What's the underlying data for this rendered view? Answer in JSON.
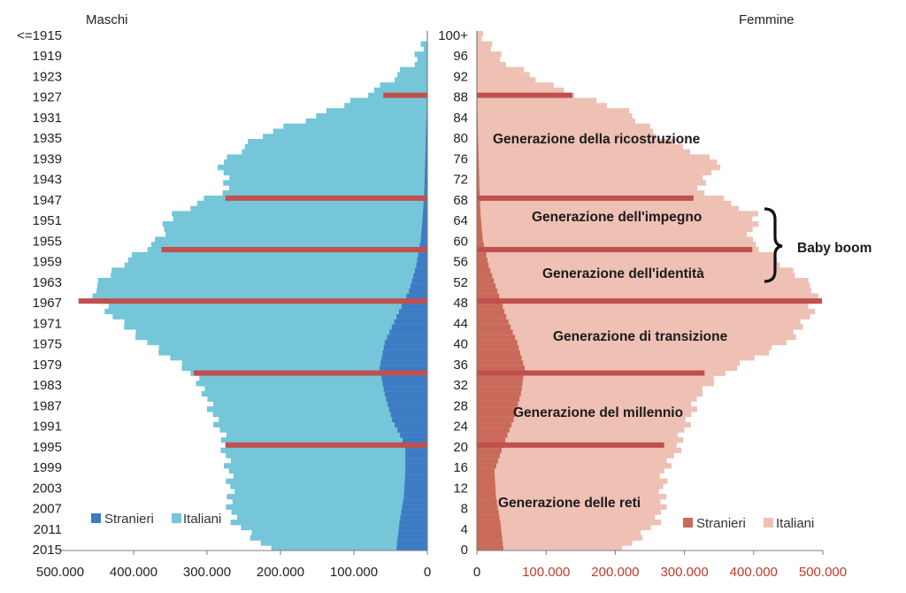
{
  "chart_data": {
    "type": "bar",
    "subtype": "population-pyramid",
    "left_panel": {
      "title": "Maschi",
      "x_ticks": [
        "500.000",
        "400.000",
        "300.000",
        "200.000",
        "100.000",
        "0"
      ],
      "y_ticks": [
        "<=1915",
        "1919",
        "1923",
        "1927",
        "1931",
        "1935",
        "1939",
        "1943",
        "1947",
        "1951",
        "1955",
        "1959",
        "1963",
        "1967",
        "1971",
        "1975",
        "1979",
        "1983",
        "1987",
        "1991",
        "1995",
        "1999",
        "2003",
        "2007",
        "2011",
        "2015"
      ],
      "legend": [
        {
          "name": "Stranieri",
          "color": "#3d7cc4"
        },
        {
          "name": "Italiani",
          "color": "#74c6d8"
        }
      ]
    },
    "right_panel": {
      "title": "Femmine",
      "x_ticks": [
        "0",
        "100.000",
        "200.000",
        "300.000",
        "400.000",
        "500.000"
      ],
      "y_ticks": [
        "100+",
        "96",
        "92",
        "88",
        "84",
        "80",
        "76",
        "72",
        "68",
        "64",
        "60",
        "56",
        "52",
        "48",
        "44",
        "40",
        "36",
        "32",
        "28",
        "24",
        "20",
        "16",
        "12",
        "8",
        "4",
        "0"
      ],
      "legend": [
        {
          "name": "Stranieri",
          "color": "#c96a5a"
        },
        {
          "name": "Italiani",
          "color": "#efc0b4"
        }
      ]
    },
    "xlim": [
      0,
      500000
    ],
    "age_range": [
      0,
      100
    ],
    "series": [
      {
        "name": "Maschi Italiani",
        "color": "#74c6d8",
        "ages": [
          0,
          5,
          10,
          15,
          20,
          25,
          30,
          35,
          40,
          45,
          50,
          55,
          60,
          65,
          70,
          75,
          80,
          85,
          90,
          95,
          100
        ],
        "values": [
          220000,
          262000,
          270000,
          270000,
          275000,
          290000,
          300000,
          330000,
          380000,
          430000,
          455000,
          420000,
          365000,
          345000,
          270000,
          280000,
          230000,
          130000,
          60000,
          12000,
          2000
        ]
      },
      {
        "name": "Maschi Stranieri",
        "color": "#3d7cc4",
        "ages": [
          0,
          5,
          10,
          15,
          20,
          25,
          30,
          35,
          40,
          45,
          50,
          55,
          60,
          65,
          70,
          75,
          80,
          85,
          90,
          95,
          100
        ],
        "values": [
          42000,
          38000,
          32000,
          30000,
          30000,
          48000,
          58000,
          65000,
          58000,
          42000,
          25000,
          15000,
          9000,
          6000,
          4000,
          3000,
          2000,
          1000,
          500,
          0,
          0
        ]
      },
      {
        "name": "Femmine Italiane",
        "color": "#efc0b4",
        "ages": [
          0,
          5,
          10,
          15,
          20,
          25,
          30,
          35,
          40,
          45,
          50,
          55,
          60,
          65,
          70,
          75,
          80,
          85,
          90,
          95,
          100
        ],
        "values": [
          205000,
          245000,
          255000,
          255000,
          275000,
          290000,
          300000,
          350000,
          420000,
          455000,
          460000,
          420000,
          370000,
          380000,
          300000,
          330000,
          250000,
          200000,
          100000,
          30000,
          10000
        ]
      },
      {
        "name": "Femmine Straniere",
        "color": "#c96a5a",
        "ages": [
          0,
          5,
          10,
          15,
          20,
          25,
          30,
          35,
          40,
          45,
          50,
          55,
          60,
          65,
          70,
          75,
          80,
          85,
          90,
          95,
          100
        ],
        "values": [
          36000,
          32000,
          26000,
          24000,
          36000,
          50000,
          60000,
          65000,
          55000,
          40000,
          28000,
          16000,
          8000,
          5000,
          3500,
          2500,
          1500,
          800,
          300,
          0,
          0
        ]
      }
    ],
    "highlight_ages": [
      8,
      20,
      34,
      48,
      58,
      68,
      88
    ],
    "highlight_color": "#c0504d",
    "highlight_bars": {
      "left": [
        {
          "age": 20,
          "value": 275000
        },
        {
          "age": 34,
          "value": 318000
        },
        {
          "age": 48,
          "value": 475000
        },
        {
          "age": 58,
          "value": 362000
        },
        {
          "age": 68,
          "value": 275000
        },
        {
          "age": 88,
          "value": 60000
        }
      ],
      "right": [
        {
          "age": 20,
          "value": 255000
        },
        {
          "age": 34,
          "value": 310000
        },
        {
          "age": 48,
          "value": 470000
        },
        {
          "age": 58,
          "value": 375000
        },
        {
          "age": 68,
          "value": 295000
        },
        {
          "age": 88,
          "value": 130000
        }
      ]
    },
    "generations": [
      "Generazione della ricostruzione",
      "Generazione dell'impegno",
      "Generazione dell'identità",
      "Generazione di transizione",
      "Generazione del millennio",
      "Generazione delle reti"
    ],
    "brace_label": "Baby boom"
  }
}
